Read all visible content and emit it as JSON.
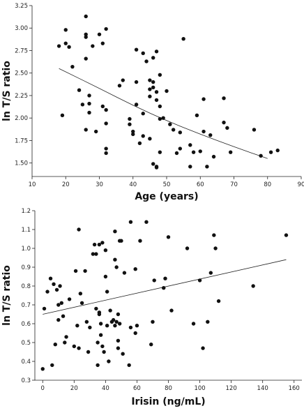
{
  "chart_data": [
    {
      "type": "scatter",
      "xlabel": "Age (years)",
      "ylabel": "ln T/S ratio",
      "xlim": [
        10,
        90
      ],
      "ylim": [
        1.35,
        3.25
      ],
      "xticks": [
        10,
        20,
        30,
        40,
        50,
        60,
        70,
        80,
        90
      ],
      "yticks": [
        1.5,
        1.75,
        2.0,
        2.25,
        2.5,
        2.75,
        3.0,
        3.25
      ],
      "ytick_labels": [
        "1.50",
        "1.75",
        "2.00",
        "2.25",
        "2.50",
        "2.75",
        "3.00",
        "3.25"
      ],
      "trend": {
        "type": "curve",
        "points": [
          [
            18,
            2.55
          ],
          [
            30,
            2.33
          ],
          [
            40,
            2.14
          ],
          [
            50,
            1.97
          ],
          [
            60,
            1.82
          ],
          [
            70,
            1.68
          ],
          [
            80,
            1.55
          ]
        ]
      },
      "points": [
        [
          18,
          2.8
        ],
        [
          19,
          2.03
        ],
        [
          20,
          2.83
        ],
        [
          20,
          2.98
        ],
        [
          21,
          2.79
        ],
        [
          22,
          2.57
        ],
        [
          24,
          2.31
        ],
        [
          25,
          2.15
        ],
        [
          26,
          3.13
        ],
        [
          26,
          2.93
        ],
        [
          26,
          2.9
        ],
        [
          26,
          2.66
        ],
        [
          26,
          1.87
        ],
        [
          27,
          2.25
        ],
        [
          27,
          2.16
        ],
        [
          27,
          2.06
        ],
        [
          28,
          2.8
        ],
        [
          29,
          1.85
        ],
        [
          30,
          2.93
        ],
        [
          31,
          2.83
        ],
        [
          31,
          2.13
        ],
        [
          32,
          2.99
        ],
        [
          32,
          2.09
        ],
        [
          32,
          1.94
        ],
        [
          32,
          1.66
        ],
        [
          32,
          1.61
        ],
        [
          36,
          2.36
        ],
        [
          37,
          2.42
        ],
        [
          39,
          1.99
        ],
        [
          39,
          1.93
        ],
        [
          40,
          1.85
        ],
        [
          40,
          1.82
        ],
        [
          41,
          2.76
        ],
        [
          41,
          2.4
        ],
        [
          41,
          2.15
        ],
        [
          42,
          1.72
        ],
        [
          43,
          2.72
        ],
        [
          43,
          2.05
        ],
        [
          43,
          1.8
        ],
        [
          44,
          2.63
        ],
        [
          45,
          2.42
        ],
        [
          45,
          2.32
        ],
        [
          45,
          2.24
        ],
        [
          45,
          1.77
        ],
        [
          46,
          2.67
        ],
        [
          46,
          2.4
        ],
        [
          46,
          2.34
        ],
        [
          46,
          1.49
        ],
        [
          47,
          2.74
        ],
        [
          47,
          2.29
        ],
        [
          47,
          2.2
        ],
        [
          47,
          1.46
        ],
        [
          47,
          1.45
        ],
        [
          48,
          2.48
        ],
        [
          48,
          2.13
        ],
        [
          48,
          1.99
        ],
        [
          48,
          1.62
        ],
        [
          49,
          2.0
        ],
        [
          50,
          2.3
        ],
        [
          51,
          1.93
        ],
        [
          52,
          1.87
        ],
        [
          53,
          1.61
        ],
        [
          54,
          1.66
        ],
        [
          54,
          1.84
        ],
        [
          55,
          2.88
        ],
        [
          57,
          1.46
        ],
        [
          57,
          1.7
        ],
        [
          58,
          1.62
        ],
        [
          59,
          2.03
        ],
        [
          60,
          1.63
        ],
        [
          61,
          2.21
        ],
        [
          61,
          1.85
        ],
        [
          62,
          1.46
        ],
        [
          63,
          1.81
        ],
        [
          64,
          1.57
        ],
        [
          67,
          2.22
        ],
        [
          67,
          1.95
        ],
        [
          68,
          1.89
        ],
        [
          69,
          1.62
        ],
        [
          76,
          1.87
        ],
        [
          78,
          1.58
        ],
        [
          81,
          1.62
        ],
        [
          83,
          1.64
        ]
      ]
    },
    {
      "type": "scatter",
      "xlabel": "Irisin (ng/mL)",
      "ylabel": "ln T/S ratio",
      "xlim": [
        -5,
        165
      ],
      "ylim": [
        0.3,
        1.2
      ],
      "xticks": [
        0,
        20,
        40,
        60,
        80,
        100,
        120,
        140,
        160
      ],
      "yticks": [
        0.3,
        0.4,
        0.5,
        0.6,
        0.7,
        0.8,
        0.9,
        1.0,
        1.1,
        1.2
      ],
      "ytick_labels": [
        "0.3",
        "0.4",
        "0.5",
        "0.6",
        "0.7",
        "0.8",
        "0.9",
        "1.0",
        "1.1",
        "1.2"
      ],
      "trend": {
        "type": "line",
        "points": [
          [
            0,
            0.65
          ],
          [
            155,
            0.94
          ]
        ]
      },
      "points": [
        [
          0,
          0.36
        ],
        [
          1,
          0.68
        ],
        [
          3,
          0.77
        ],
        [
          5,
          0.84
        ],
        [
          6,
          0.38
        ],
        [
          7,
          0.81
        ],
        [
          8,
          0.49
        ],
        [
          9,
          0.78
        ],
        [
          10,
          0.62
        ],
        [
          10,
          0.7
        ],
        [
          11,
          0.8
        ],
        [
          12,
          0.71
        ],
        [
          13,
          0.64
        ],
        [
          14,
          0.5
        ],
        [
          15,
          0.53
        ],
        [
          17,
          0.73
        ],
        [
          20,
          0.48
        ],
        [
          21,
          0.88
        ],
        [
          22,
          0.59
        ],
        [
          23,
          0.47
        ],
        [
          23,
          1.1
        ],
        [
          24,
          0.76
        ],
        [
          25,
          0.71
        ],
        [
          27,
          0.88
        ],
        [
          28,
          0.61
        ],
        [
          29,
          0.45
        ],
        [
          30,
          0.58
        ],
        [
          32,
          0.97
        ],
        [
          33,
          1.02
        ],
        [
          34,
          0.97
        ],
        [
          34,
          0.68
        ],
        [
          35,
          0.5
        ],
        [
          35,
          0.38
        ],
        [
          36,
          1.02
        ],
        [
          36,
          0.66
        ],
        [
          36,
          0.65
        ],
        [
          37,
          0.54
        ],
        [
          37,
          0.6
        ],
        [
          38,
          1.03
        ],
        [
          38,
          0.48
        ],
        [
          39,
          0.45
        ],
        [
          40,
          0.99
        ],
        [
          40,
          0.85
        ],
        [
          41,
          0.77
        ],
        [
          41,
          0.59
        ],
        [
          42,
          0.4
        ],
        [
          43,
          0.67
        ],
        [
          44,
          0.61
        ],
        [
          45,
          0.62
        ],
        [
          46,
          0.94
        ],
        [
          46,
          1.09
        ],
        [
          46,
          0.59
        ],
        [
          47,
          0.9
        ],
        [
          47,
          0.61
        ],
        [
          48,
          0.65
        ],
        [
          48,
          0.47
        ],
        [
          48,
          0.51
        ],
        [
          49,
          1.04
        ],
        [
          49,
          0.6
        ],
        [
          50,
          1.04
        ],
        [
          51,
          0.44
        ],
        [
          52,
          0.87
        ],
        [
          55,
          0.38
        ],
        [
          56,
          0.58
        ],
        [
          56,
          1.14
        ],
        [
          59,
          0.89
        ],
        [
          59,
          0.55
        ],
        [
          60,
          0.59
        ],
        [
          62,
          1.04
        ],
        [
          66,
          1.14
        ],
        [
          69,
          0.49
        ],
        [
          70,
          0.61
        ],
        [
          71,
          0.83
        ],
        [
          77,
          0.79
        ],
        [
          78,
          0.84
        ],
        [
          80,
          1.06
        ],
        [
          82,
          0.67
        ],
        [
          92,
          1.0
        ],
        [
          96,
          0.6
        ],
        [
          100,
          0.83
        ],
        [
          102,
          0.47
        ],
        [
          105,
          0.61
        ],
        [
          107,
          0.87
        ],
        [
          109,
          1.07
        ],
        [
          110,
          1.0
        ],
        [
          112,
          0.72
        ],
        [
          134,
          0.8
        ],
        [
          155,
          1.07
        ]
      ]
    }
  ]
}
